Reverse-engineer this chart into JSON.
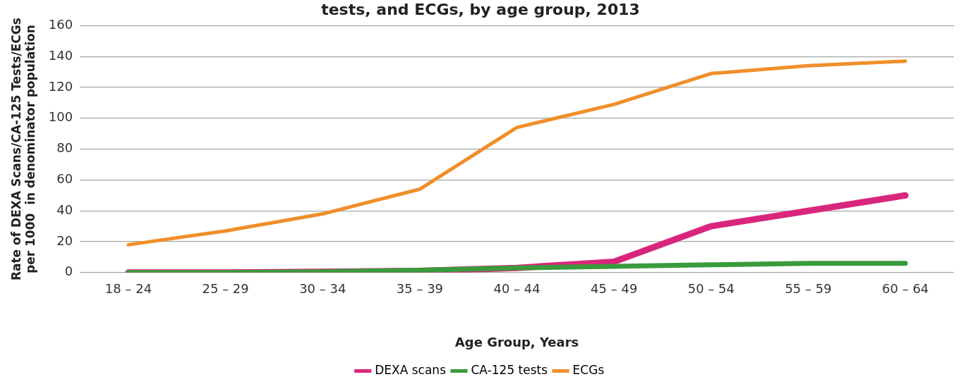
{
  "chart_data": {
    "type": "line",
    "title": "tests, and ECGs, by age group, 2013",
    "xlabel": "Age Group, Years",
    "ylabel": "Rate of DEXA Scans/CA-125 Tests/ECGs per 1000  in denominator population",
    "categories": [
      "18 – 24",
      "25 – 29",
      "30 – 34",
      "35 – 39",
      "40 – 44",
      "45 – 49",
      "50 – 54",
      "55 – 59",
      "60 – 64"
    ],
    "series": [
      {
        "name": "DEXA scans",
        "color": "#d9267d",
        "values": [
          0,
          0,
          0.5,
          1,
          3,
          7,
          30,
          40,
          50
        ]
      },
      {
        "name": "CA-125 tests",
        "color": "#3a9b3c",
        "values": [
          0,
          0,
          0.5,
          1.5,
          3,
          4,
          5,
          6,
          6
        ]
      },
      {
        "name": "ECGs",
        "color": "#ef8f2b",
        "values": [
          18,
          27,
          38,
          54,
          94,
          109,
          129,
          134,
          137
        ]
      }
    ],
    "ylim": [
      0,
      160
    ],
    "yticks": [
      0,
      20,
      40,
      60,
      80,
      100,
      120,
      140,
      160
    ],
    "grid": "y",
    "legend": "bottom",
    "marker": "none",
    "line_style": "solid"
  }
}
